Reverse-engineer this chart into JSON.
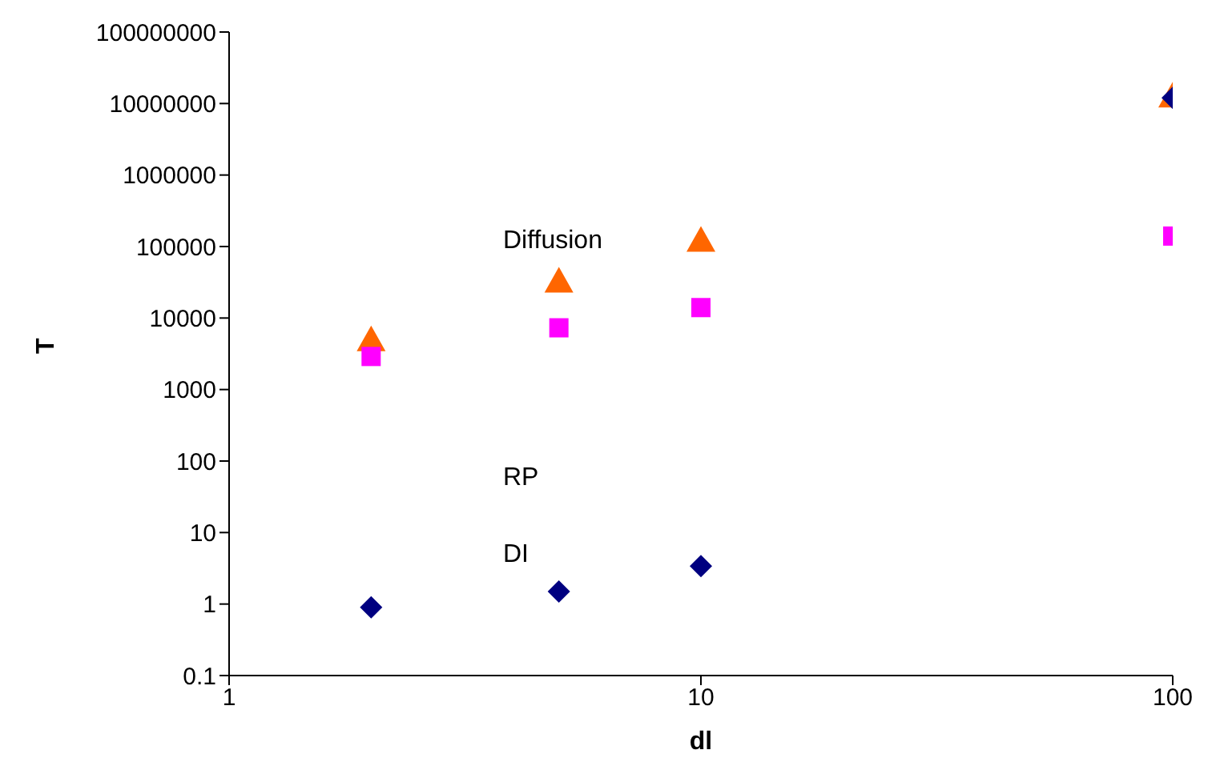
{
  "chart_data": {
    "type": "scatter",
    "xlabel": "dl",
    "ylabel": "T",
    "log": "xy",
    "grid": false,
    "xlim": [
      1,
      100
    ],
    "xticks": [
      1,
      10,
      100
    ],
    "ylim": [
      0.1,
      100000000
    ],
    "yticks": [
      0.1,
      1,
      10,
      100,
      1000,
      10000,
      100000,
      1000000,
      10000000,
      100000000
    ],
    "series": [
      {
        "color": "#ff6600",
        "marker": "triangle",
        "x": [
          2,
          5,
          10,
          100
        ],
        "values": [
          4700,
          31000,
          115000,
          12000000
        ]
      },
      {
        "color": "#ff00ff",
        "marker": "square",
        "x": [
          2,
          5,
          10,
          100
        ],
        "values": [
          2900,
          7300,
          14000,
          140000
        ]
      },
      {
        "color": "#000080",
        "marker": "diamond",
        "x": [
          2,
          5,
          10,
          100
        ],
        "values": [
          0.9,
          1.5,
          3.4,
          12000000
        ]
      }
    ],
    "annotations": [
      "Diffusion",
      "RP",
      "DI"
    ]
  }
}
